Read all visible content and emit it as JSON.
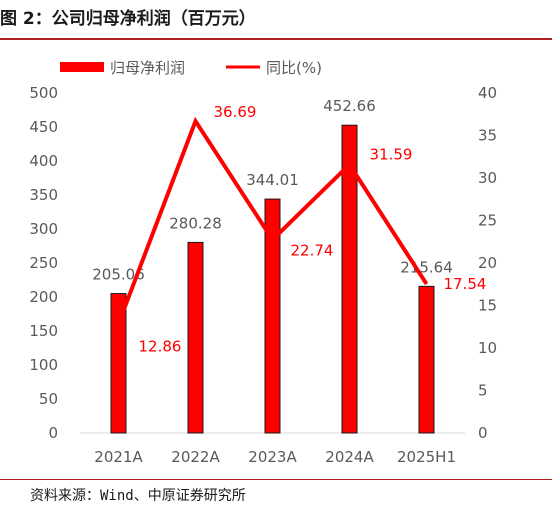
{
  "header": {
    "title": "图 2：公司归母净利润（百万元）"
  },
  "footer": {
    "source": "资料来源：Wind、中原证券研究所"
  },
  "colors": {
    "bar": "#ff0000",
    "line": "#ff0000",
    "axis_text": "#595959",
    "line_label": "#ff0000",
    "rule": "#b01f24"
  },
  "chart_data": {
    "type": "bar",
    "categories": [
      "2021A",
      "2022A",
      "2023A",
      "2024A",
      "2025H1"
    ],
    "series": [
      {
        "name": "归母净利润",
        "type": "bar",
        "axis": "left",
        "values": [
          205.06,
          280.28,
          344.01,
          452.66,
          215.64
        ],
        "labels": [
          "205.06",
          "280.28",
          "344.01",
          "452.66",
          "215.64"
        ]
      },
      {
        "name": "同比(%)",
        "type": "line",
        "axis": "right",
        "values": [
          12.86,
          36.69,
          22.74,
          31.59,
          17.54
        ],
        "labels": [
          "12.86",
          "36.69",
          "22.74",
          "31.59",
          "17.54"
        ]
      }
    ],
    "y_left": {
      "min": 0,
      "max": 500,
      "ticks": [
        "0",
        "50",
        "100",
        "150",
        "200",
        "250",
        "300",
        "350",
        "400",
        "450",
        "500"
      ]
    },
    "y_right": {
      "min": 0,
      "max": 40,
      "ticks": [
        "0",
        "5",
        "10",
        "15",
        "20",
        "25",
        "30",
        "35",
        "40"
      ]
    },
    "legend_position": "top-left",
    "grid": false
  }
}
